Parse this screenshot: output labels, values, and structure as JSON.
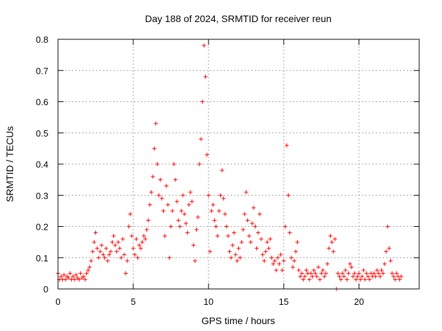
{
  "chart_data": {
    "type": "scatter",
    "title": "Day 188 of 2024, SRMTID for receiver reun",
    "xlabel": "GPS time / hours",
    "ylabel": "SRMTID / TECUs",
    "xlim": [
      0,
      24
    ],
    "ylim": [
      0,
      0.8
    ],
    "xticks": [
      0,
      5,
      10,
      15,
      20
    ],
    "xtick_labels": [
      "0",
      "5",
      "10",
      "15",
      "20"
    ],
    "yticks": [
      0,
      0.1,
      0.2,
      0.3,
      0.4,
      0.5,
      0.6,
      0.7,
      0.8
    ],
    "ytick_labels": [
      "0",
      "0.1",
      "0.2",
      "0.3",
      "0.4",
      "0.5",
      "0.6",
      "0.7",
      "0.8"
    ],
    "grid": true,
    "marker": "plus",
    "color": "#ff0000",
    "series": [
      {
        "name": "SRMTID",
        "points": [
          [
            0.0,
            0.05
          ],
          [
            0.1,
            0.03
          ],
          [
            0.2,
            0.04
          ],
          [
            0.3,
            0.03
          ],
          [
            0.4,
            0.045
          ],
          [
            0.5,
            0.03
          ],
          [
            0.6,
            0.04
          ],
          [
            0.7,
            0.035
          ],
          [
            0.8,
            0.05
          ],
          [
            0.9,
            0.03
          ],
          [
            1.0,
            0.04
          ],
          [
            1.1,
            0.03
          ],
          [
            1.2,
            0.045
          ],
          [
            1.3,
            0.035
          ],
          [
            1.4,
            0.03
          ],
          [
            1.5,
            0.05
          ],
          [
            1.6,
            0.035
          ],
          [
            1.7,
            0.04
          ],
          [
            1.8,
            0.03
          ],
          [
            1.9,
            0.05
          ],
          [
            2.0,
            0.06
          ],
          [
            2.1,
            0.07
          ],
          [
            2.2,
            0.09
          ],
          [
            2.3,
            0.12
          ],
          [
            2.4,
            0.15
          ],
          [
            2.5,
            0.18
          ],
          [
            2.6,
            0.13
          ],
          [
            2.7,
            0.1
          ],
          [
            2.8,
            0.12
          ],
          [
            2.9,
            0.14
          ],
          [
            3.0,
            0.11
          ],
          [
            3.1,
            0.1
          ],
          [
            3.2,
            0.13
          ],
          [
            3.3,
            0.09
          ],
          [
            3.4,
            0.11
          ],
          [
            3.5,
            0.12
          ],
          [
            3.6,
            0.15
          ],
          [
            3.7,
            0.17
          ],
          [
            3.8,
            0.14
          ],
          [
            3.9,
            0.12
          ],
          [
            4.0,
            0.15
          ],
          [
            4.1,
            0.13
          ],
          [
            4.2,
            0.1
          ],
          [
            4.3,
            0.16
          ],
          [
            4.4,
            0.11
          ],
          [
            4.5,
            0.05
          ],
          [
            4.6,
            0.09
          ],
          [
            4.7,
            0.2
          ],
          [
            4.8,
            0.24
          ],
          [
            4.9,
            0.17
          ],
          [
            5.0,
            0.13
          ],
          [
            5.1,
            0.11
          ],
          [
            5.2,
            0.16
          ],
          [
            5.3,
            0.1
          ],
          [
            5.4,
            0.14
          ],
          [
            5.5,
            0.13
          ],
          [
            5.6,
            0.15
          ],
          [
            5.7,
            0.17
          ],
          [
            5.8,
            0.16
          ],
          [
            5.9,
            0.19
          ],
          [
            6.0,
            0.22
          ],
          [
            6.1,
            0.27
          ],
          [
            6.2,
            0.31
          ],
          [
            6.3,
            0.36
          ],
          [
            6.4,
            0.45
          ],
          [
            6.5,
            0.53
          ],
          [
            6.6,
            0.4
          ],
          [
            6.7,
            0.3
          ],
          [
            6.8,
            0.35
          ],
          [
            6.9,
            0.29
          ],
          [
            7.0,
            0.25
          ],
          [
            7.1,
            0.17
          ],
          [
            7.2,
            0.33
          ],
          [
            7.3,
            0.27
          ],
          [
            7.4,
            0.1
          ],
          [
            7.5,
            0.2
          ],
          [
            7.6,
            0.25
          ],
          [
            7.7,
            0.4
          ],
          [
            7.8,
            0.35
          ],
          [
            7.9,
            0.28
          ],
          [
            8.0,
            0.22
          ],
          [
            8.1,
            0.2
          ],
          [
            8.2,
            0.25
          ],
          [
            8.3,
            0.3
          ],
          [
            8.4,
            0.24
          ],
          [
            8.5,
            0.21
          ],
          [
            8.6,
            0.18
          ],
          [
            8.7,
            0.27
          ],
          [
            8.8,
            0.31
          ],
          [
            8.9,
            0.28
          ],
          [
            9.0,
            0.14
          ],
          [
            9.1,
            0.09
          ],
          [
            9.2,
            0.19
          ],
          [
            9.3,
            0.23
          ],
          [
            9.4,
            0.4
          ],
          [
            9.5,
            0.48
          ],
          [
            9.6,
            0.6
          ],
          [
            9.7,
            0.78
          ],
          [
            9.8,
            0.68
          ],
          [
            9.9,
            0.43
          ],
          [
            10.0,
            0.3
          ],
          [
            10.1,
            0.12
          ],
          [
            10.2,
            0.25
          ],
          [
            10.3,
            0.27
          ],
          [
            10.4,
            0.22
          ],
          [
            10.5,
            0.2
          ],
          [
            10.6,
            0.17
          ],
          [
            10.7,
            0.25
          ],
          [
            10.8,
            0.3
          ],
          [
            10.9,
            0.38
          ],
          [
            11.0,
            0.29
          ],
          [
            11.1,
            0.24
          ],
          [
            11.2,
            0.2
          ],
          [
            11.3,
            0.17
          ],
          [
            11.4,
            0.12
          ],
          [
            11.5,
            0.1
          ],
          [
            11.6,
            0.14
          ],
          [
            11.7,
            0.18
          ],
          [
            11.8,
            0.11
          ],
          [
            11.9,
            0.09
          ],
          [
            12.0,
            0.13
          ],
          [
            12.1,
            0.1
          ],
          [
            12.2,
            0.15
          ],
          [
            12.3,
            0.19
          ],
          [
            12.4,
            0.24
          ],
          [
            12.5,
            0.31
          ],
          [
            12.6,
            0.22
          ],
          [
            12.7,
            0.17
          ],
          [
            12.8,
            0.15
          ],
          [
            12.9,
            0.21
          ],
          [
            13.0,
            0.26
          ],
          [
            13.1,
            0.2
          ],
          [
            13.2,
            0.13
          ],
          [
            13.3,
            0.18
          ],
          [
            13.4,
            0.24
          ],
          [
            13.5,
            0.16
          ],
          [
            13.6,
            0.11
          ],
          [
            13.7,
            0.09
          ],
          [
            13.8,
            0.12
          ],
          [
            13.9,
            0.15
          ],
          [
            14.0,
            0.13
          ],
          [
            14.1,
            0.16
          ],
          [
            14.2,
            0.1
          ],
          [
            14.3,
            0.08
          ],
          [
            14.4,
            0.09
          ],
          [
            14.5,
            0.06
          ],
          [
            14.6,
            0.1
          ],
          [
            14.7,
            0.08
          ],
          [
            14.8,
            0.11
          ],
          [
            14.9,
            0.06
          ],
          [
            15.0,
            0.09
          ],
          [
            15.1,
            0.2
          ],
          [
            15.2,
            0.46
          ],
          [
            15.3,
            0.3
          ],
          [
            15.4,
            0.18
          ],
          [
            15.5,
            0.1
          ],
          [
            15.6,
            0.07
          ],
          [
            15.7,
            0.09
          ],
          [
            15.8,
            0.12
          ],
          [
            15.9,
            0.15
          ],
          [
            16.0,
            0.06
          ],
          [
            16.1,
            0.04
          ],
          [
            16.2,
            0.05
          ],
          [
            16.3,
            0.03
          ],
          [
            16.4,
            0.04
          ],
          [
            16.5,
            0.06
          ],
          [
            16.6,
            0.05
          ],
          [
            16.7,
            0.03
          ],
          [
            16.8,
            0.05
          ],
          [
            16.9,
            0.04
          ],
          [
            17.0,
            0.06
          ],
          [
            17.1,
            0.05
          ],
          [
            17.2,
            0.04
          ],
          [
            17.3,
            0.07
          ],
          [
            17.4,
            0.03
          ],
          [
            17.5,
            0.05
          ],
          [
            17.6,
            0.06
          ],
          [
            17.7,
            0.04
          ],
          [
            17.8,
            0.05
          ],
          [
            17.9,
            0.08
          ],
          [
            18.0,
            0.13
          ],
          [
            18.1,
            0.17
          ],
          [
            18.2,
            0.15
          ],
          [
            18.3,
            0.12
          ],
          [
            18.4,
            0.16
          ],
          [
            18.5,
            0.0
          ],
          [
            18.6,
            0.05
          ],
          [
            18.7,
            0.04
          ],
          [
            18.8,
            0.03
          ],
          [
            18.9,
            0.05
          ],
          [
            19.0,
            0.04
          ],
          [
            19.1,
            0.06
          ],
          [
            19.2,
            0.03
          ],
          [
            19.3,
            0.05
          ],
          [
            19.4,
            0.08
          ],
          [
            19.5,
            0.07
          ],
          [
            19.6,
            0.04
          ],
          [
            19.7,
            0.05
          ],
          [
            19.8,
            0.03
          ],
          [
            19.9,
            0.04
          ],
          [
            20.0,
            0.05
          ],
          [
            20.1,
            0.03
          ],
          [
            20.2,
            0.04
          ],
          [
            20.3,
            0.06
          ],
          [
            20.4,
            0.03
          ],
          [
            20.5,
            0.05
          ],
          [
            20.6,
            0.04
          ],
          [
            20.7,
            0.03
          ],
          [
            20.8,
            0.05
          ],
          [
            20.9,
            0.04
          ],
          [
            21.0,
            0.05
          ],
          [
            21.1,
            0.04
          ],
          [
            21.2,
            0.06
          ],
          [
            21.3,
            0.05
          ],
          [
            21.4,
            0.04
          ],
          [
            21.5,
            0.06
          ],
          [
            21.6,
            0.05
          ],
          [
            21.7,
            0.08
          ],
          [
            21.8,
            0.12
          ],
          [
            21.9,
            0.2
          ],
          [
            22.0,
            0.13
          ],
          [
            22.1,
            0.09
          ],
          [
            22.2,
            0.05
          ],
          [
            22.3,
            0.04
          ],
          [
            22.4,
            0.03
          ],
          [
            22.5,
            0.05
          ],
          [
            22.6,
            0.04
          ],
          [
            22.7,
            0.03
          ],
          [
            22.8,
            0.04
          ]
        ]
      }
    ]
  }
}
